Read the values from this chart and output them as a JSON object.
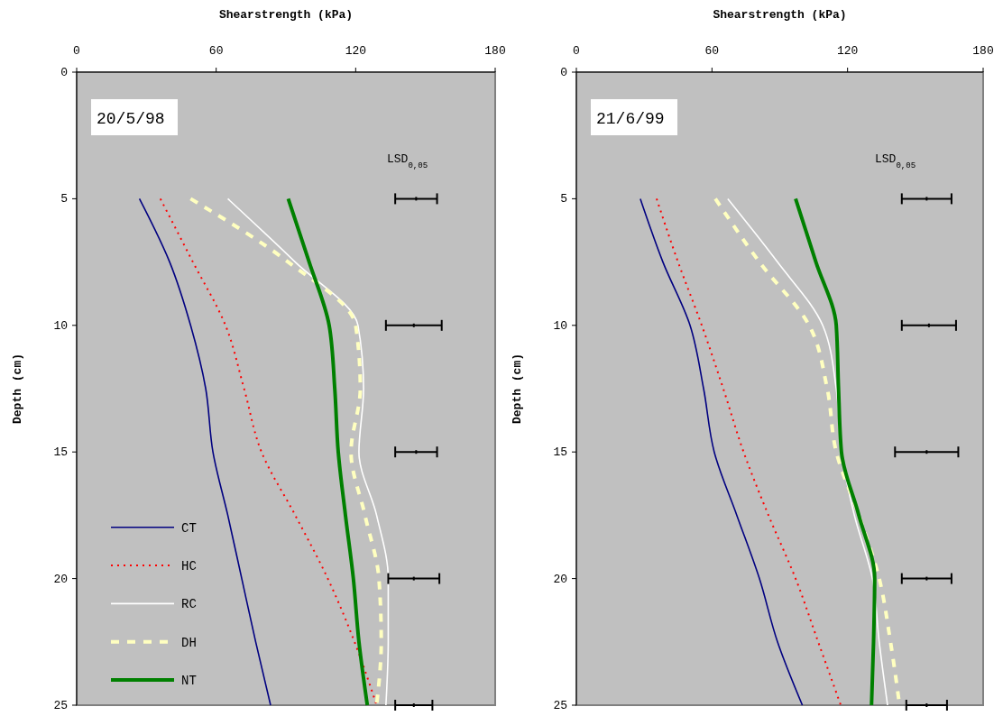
{
  "chart_data": [
    {
      "type": "line",
      "xlabel": "Shearstrength (kPa)",
      "ylabel": "Depth (cm)",
      "xlim": [
        0,
        180
      ],
      "xticks": [
        0,
        60,
        120,
        180
      ],
      "ylim": [
        25,
        0
      ],
      "yticks": [
        0,
        5,
        10,
        15,
        20,
        25
      ],
      "grid": false,
      "legend": "bottom left",
      "annotations": [
        "20/5/98",
        "LSD$_{0,05}$"
      ],
      "series": [
        {
          "name": "CT",
          "color": "#000080",
          "line_style": "solid",
          "x": [
            27,
            40,
            49,
            55.5,
            58.6,
            65,
            71,
            77,
            83.4
          ],
          "values": [
            5,
            7.5,
            10,
            12.5,
            15,
            17.5,
            20,
            22.5,
            25
          ]
        },
        {
          "name": "HC",
          "color": "#ff0000",
          "line_style": "dotted",
          "x": [
            36,
            50,
            64,
            72,
            79.5,
            94,
            108,
            119.5,
            129
          ],
          "values": [
            5,
            7.5,
            10,
            12.5,
            15,
            17.5,
            20,
            22.5,
            25
          ]
        },
        {
          "name": "RC",
          "color": "#ffffff",
          "line_style": "solid",
          "x": [
            65,
            94,
            121,
            123.4,
            121.4,
            129,
            134,
            134,
            133
          ],
          "values": [
            5,
            7.5,
            10,
            12.5,
            15,
            17.5,
            20,
            22.5,
            25
          ]
        },
        {
          "name": "DH",
          "color": "#ffffc0",
          "line_style": "dashed",
          "x": [
            49,
            91,
            120,
            122,
            118,
            124,
            130,
            131,
            129
          ],
          "values": [
            5,
            7.5,
            10,
            12.5,
            15,
            17.5,
            20,
            22.5,
            25
          ]
        },
        {
          "name": "NT",
          "color": "#008000",
          "line_style": "solid",
          "x": [
            91,
            100,
            108.6,
            111,
            112.5,
            115.6,
            119,
            121.4,
            125
          ],
          "values": [
            5,
            7.5,
            10,
            12.5,
            15,
            17.5,
            20,
            22.5,
            25
          ]
        },
        {
          "type": "scatter",
          "color": "#000000",
          "x": [
            146,
            145,
            146,
            145,
            145
          ],
          "values": [
            5,
            10,
            15,
            20,
            25
          ],
          "xerrors": [
            9,
            12,
            9,
            11,
            8
          ]
        }
      ]
    },
    {
      "type": "line",
      "xlabel": "Shearstrength (kPa)",
      "ylabel": "Depth (cm)",
      "xlim": [
        0,
        180
      ],
      "xticks": [
        0,
        60,
        120,
        180
      ],
      "ylim": [
        25,
        0
      ],
      "yticks": [
        0,
        5,
        10,
        15,
        20,
        25
      ],
      "grid": false,
      "legend": false,
      "annotations": [
        "21/6/99",
        "LSD$_{0,05}$"
      ],
      "series": [
        {
          "color": "#000080",
          "line_style": "solid",
          "x": [
            28.3,
            38.3,
            50.3,
            56.3,
            61,
            71,
            81,
            89,
            100
          ],
          "values": [
            5,
            7.5,
            10,
            12.5,
            15,
            17.5,
            20,
            22.5,
            25
          ]
        },
        {
          "color": "#ff0000",
          "line_style": "dotted",
          "x": [
            35.5,
            45,
            55.5,
            65,
            74,
            85,
            97,
            107,
            117
          ],
          "values": [
            5,
            7.5,
            10,
            12.5,
            15,
            17.5,
            20,
            22.5,
            25
          ]
        },
        {
          "color": "#ffffff",
          "line_style": "solid",
          "x": [
            67,
            89,
            109,
            115,
            117.3,
            123,
            131,
            134,
            137.7
          ],
          "values": [
            5,
            7.5,
            10,
            12.5,
            15,
            17.5,
            20,
            22.5,
            25
          ]
        },
        {
          "color": "#ffffc0",
          "line_style": "dashed",
          "x": [
            61.5,
            81,
            103,
            111,
            115,
            125,
            134,
            139,
            143
          ],
          "values": [
            5,
            7.5,
            10,
            12.5,
            15,
            17.5,
            20,
            22.5,
            25
          ]
        },
        {
          "color": "#008000",
          "line_style": "solid",
          "x": [
            97,
            106,
            115,
            116,
            117.3,
            125,
            132,
            131.5,
            130.6
          ],
          "values": [
            5,
            7.5,
            10,
            12.5,
            15,
            17.5,
            20,
            22.5,
            25
          ]
        },
        {
          "type": "scatter",
          "color": "#000000",
          "x": [
            155,
            156,
            155,
            155,
            155
          ],
          "values": [
            5,
            10,
            15,
            20,
            25
          ],
          "xerrors": [
            11,
            12,
            14,
            11,
            9
          ]
        }
      ]
    }
  ]
}
